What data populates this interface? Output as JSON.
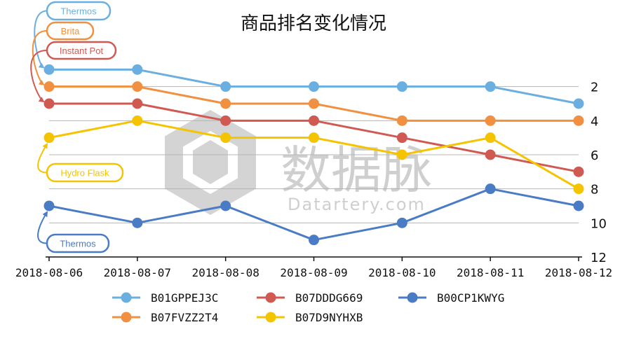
{
  "chart_data": {
    "type": "line",
    "title": "商品排名变化情况",
    "x": [
      "2018-08-06",
      "2018-08-07",
      "2018-08-08",
      "2018-08-09",
      "2018-08-10",
      "2018-08-11",
      "2018-08-12"
    ],
    "yticks": [
      2,
      4,
      6,
      8,
      10,
      12
    ],
    "ylim": [
      0,
      12
    ],
    "y_inverted": true,
    "y_axis_side": "right",
    "grid": "horizontal",
    "legend_position": "bottom",
    "series": [
      {
        "name": "B01GPPEJ3C",
        "color": "#6aafe0",
        "values": [
          1,
          1,
          2,
          2,
          2,
          2,
          3
        ]
      },
      {
        "name": "B07FVZZ2T4",
        "color": "#f09040",
        "values": [
          2,
          2,
          3,
          3,
          4,
          4,
          4
        ]
      },
      {
        "name": "B07DDDG669",
        "color": "#d05a52",
        "values": [
          3,
          3,
          4,
          4,
          5,
          6,
          7
        ]
      },
      {
        "name": "B07D9NYHXB",
        "color": "#f5c400",
        "values": [
          5,
          4,
          5,
          5,
          6,
          5,
          8
        ]
      },
      {
        "name": "B00CP1KWYG",
        "color": "#4a7cc6",
        "values": [
          9,
          10,
          9,
          11,
          10,
          8,
          9
        ]
      }
    ],
    "annotations": [
      {
        "label": "Thermos",
        "series": 0,
        "color": "#6aafe0"
      },
      {
        "label": "Brita",
        "series": 1,
        "color": "#f09040"
      },
      {
        "label": "Instant Pot",
        "series": 2,
        "color": "#d05a52"
      },
      {
        "label": "Hydro Flask",
        "series": 3,
        "color": "#f5c400"
      },
      {
        "label": "Thermos",
        "series": 4,
        "color": "#4a7cc6"
      }
    ]
  },
  "watermark": {
    "brand": "数据脉",
    "domain": "Datartery.com"
  }
}
